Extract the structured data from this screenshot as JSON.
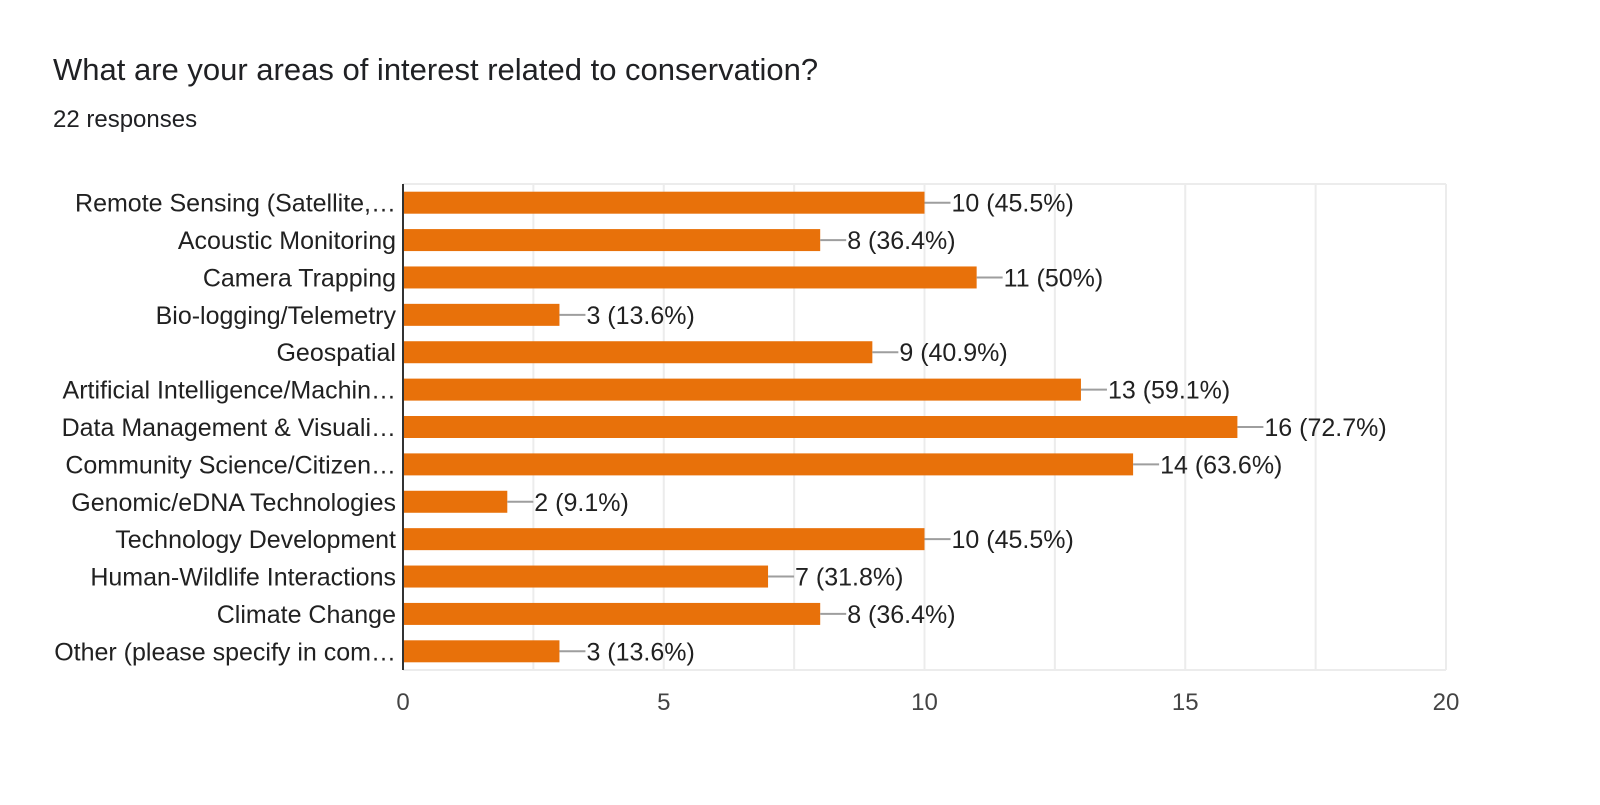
{
  "header": {
    "question": "What are your areas of interest related to conservation?",
    "responses": "22 responses"
  },
  "colors": {
    "bar": "#e8710a",
    "grid": "#ececec",
    "axis": "#333333",
    "leader": "#9e9e9e",
    "text": "#212121",
    "tick": "#444444"
  },
  "chart_data": {
    "type": "bar",
    "orientation": "horizontal",
    "grid": true,
    "xlim": [
      0,
      20
    ],
    "xticks": [
      "0",
      "5",
      "10",
      "15",
      "20"
    ],
    "categories": [
      "Remote Sensing (Satellite,…",
      "Acoustic Monitoring",
      "Camera Trapping",
      "Bio-logging/Telemetry",
      "Geospatial",
      "Artificial Intelligence/Machin…",
      "Data Management & Visuali…",
      "Community Science/Citizen…",
      "Genomic/eDNA Technologies",
      "Technology Development",
      "Human-Wildlife Interactions",
      "Climate Change",
      "Other (please specify in com…"
    ],
    "values": [
      10,
      8,
      11,
      3,
      9,
      13,
      16,
      14,
      2,
      10,
      7,
      8,
      3
    ],
    "data_labels": [
      "10 (45.5%)",
      "8 (36.4%)",
      "11 (50%)",
      "3 (13.6%)",
      "9 (40.9%)",
      "13 (59.1%)",
      "16 (72.7%)",
      "14 (63.6%)",
      "2 (9.1%)",
      "10 (45.5%)",
      "7 (31.8%)",
      "8 (36.4%)",
      "3 (13.6%)"
    ]
  }
}
